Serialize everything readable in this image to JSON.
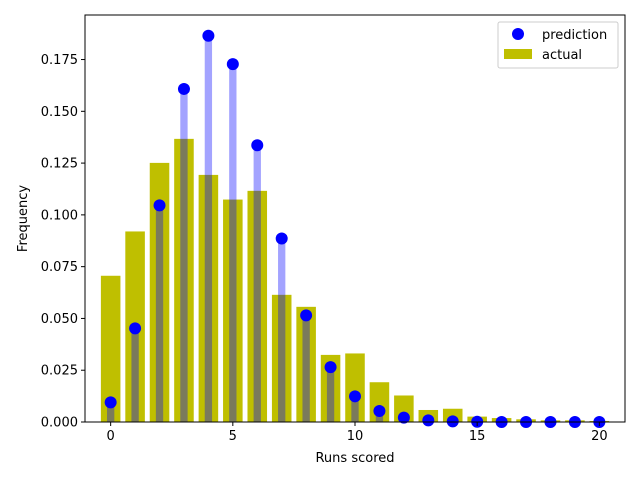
{
  "chart_data": {
    "type": "bar",
    "xlabel": "Runs scored",
    "ylabel": "Frequency",
    "xlim": [
      -1.05,
      21.05
    ],
    "ylim": [
      0,
      0.1965
    ],
    "xticks": [
      0,
      5,
      10,
      15,
      20
    ],
    "yticks": [
      0.0,
      0.025,
      0.05,
      0.075,
      0.1,
      0.125,
      0.15,
      0.175
    ],
    "ytick_labels": [
      "0.000",
      "0.025",
      "0.050",
      "0.075",
      "0.100",
      "0.125",
      "0.150",
      "0.175"
    ],
    "grid": false,
    "legend_position": "top-right",
    "x": [
      0,
      1,
      2,
      3,
      4,
      5,
      6,
      7,
      8,
      9,
      10,
      11,
      12,
      13,
      14,
      15,
      16,
      17,
      18,
      19,
      20
    ],
    "series": [
      {
        "name": "prediction",
        "kind": "points-with-stems",
        "color": "#0000ff",
        "values": [
          0.0095,
          0.0452,
          0.1046,
          0.1608,
          0.1865,
          0.1728,
          0.1336,
          0.0886,
          0.0515,
          0.0265,
          0.0124,
          0.0053,
          0.0021,
          0.0008,
          0.0003,
          0.0001,
          0.0,
          0.0,
          0.0,
          0.0,
          0.0
        ]
      },
      {
        "name": "actual",
        "kind": "bars",
        "color": "#bfbf00",
        "values": [
          0.0706,
          0.092,
          0.1251,
          0.1367,
          0.1193,
          0.1074,
          0.1116,
          0.0614,
          0.0556,
          0.0324,
          0.0331,
          0.0192,
          0.0128,
          0.0058,
          0.0064,
          0.0026,
          0.0019,
          0.0013,
          0.0008,
          0.0008,
          0.0005
        ]
      }
    ]
  }
}
